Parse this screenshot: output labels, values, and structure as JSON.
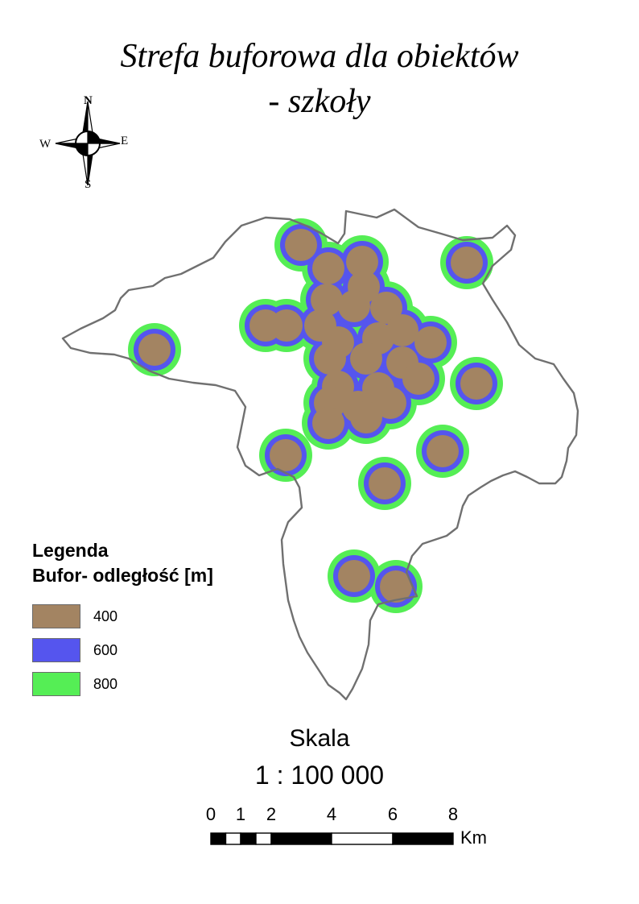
{
  "title": {
    "line1": "Strefa buforowa dla obiektów",
    "line2": "- szkoły"
  },
  "compass": {
    "n": "N",
    "s": "S",
    "e": "E",
    "w": "W"
  },
  "legend": {
    "title1": "Legenda",
    "title2": "Bufor- odległość [m]",
    "items": [
      {
        "label": "400",
        "color": "#a38462"
      },
      {
        "label": "600",
        "color": "#5555ee"
      },
      {
        "label": "800",
        "color": "#55ee55"
      }
    ]
  },
  "scale": {
    "word": "Skala",
    "ratio": "1 : 100 000",
    "ticks": [
      "0",
      "1",
      "2",
      "4",
      "6",
      "8"
    ],
    "unit": "Km"
  },
  "colors": {
    "boundary": "#707070",
    "buffer400": "#a38462",
    "buffer600": "#5555ee",
    "buffer800": "#55ee55"
  }
}
